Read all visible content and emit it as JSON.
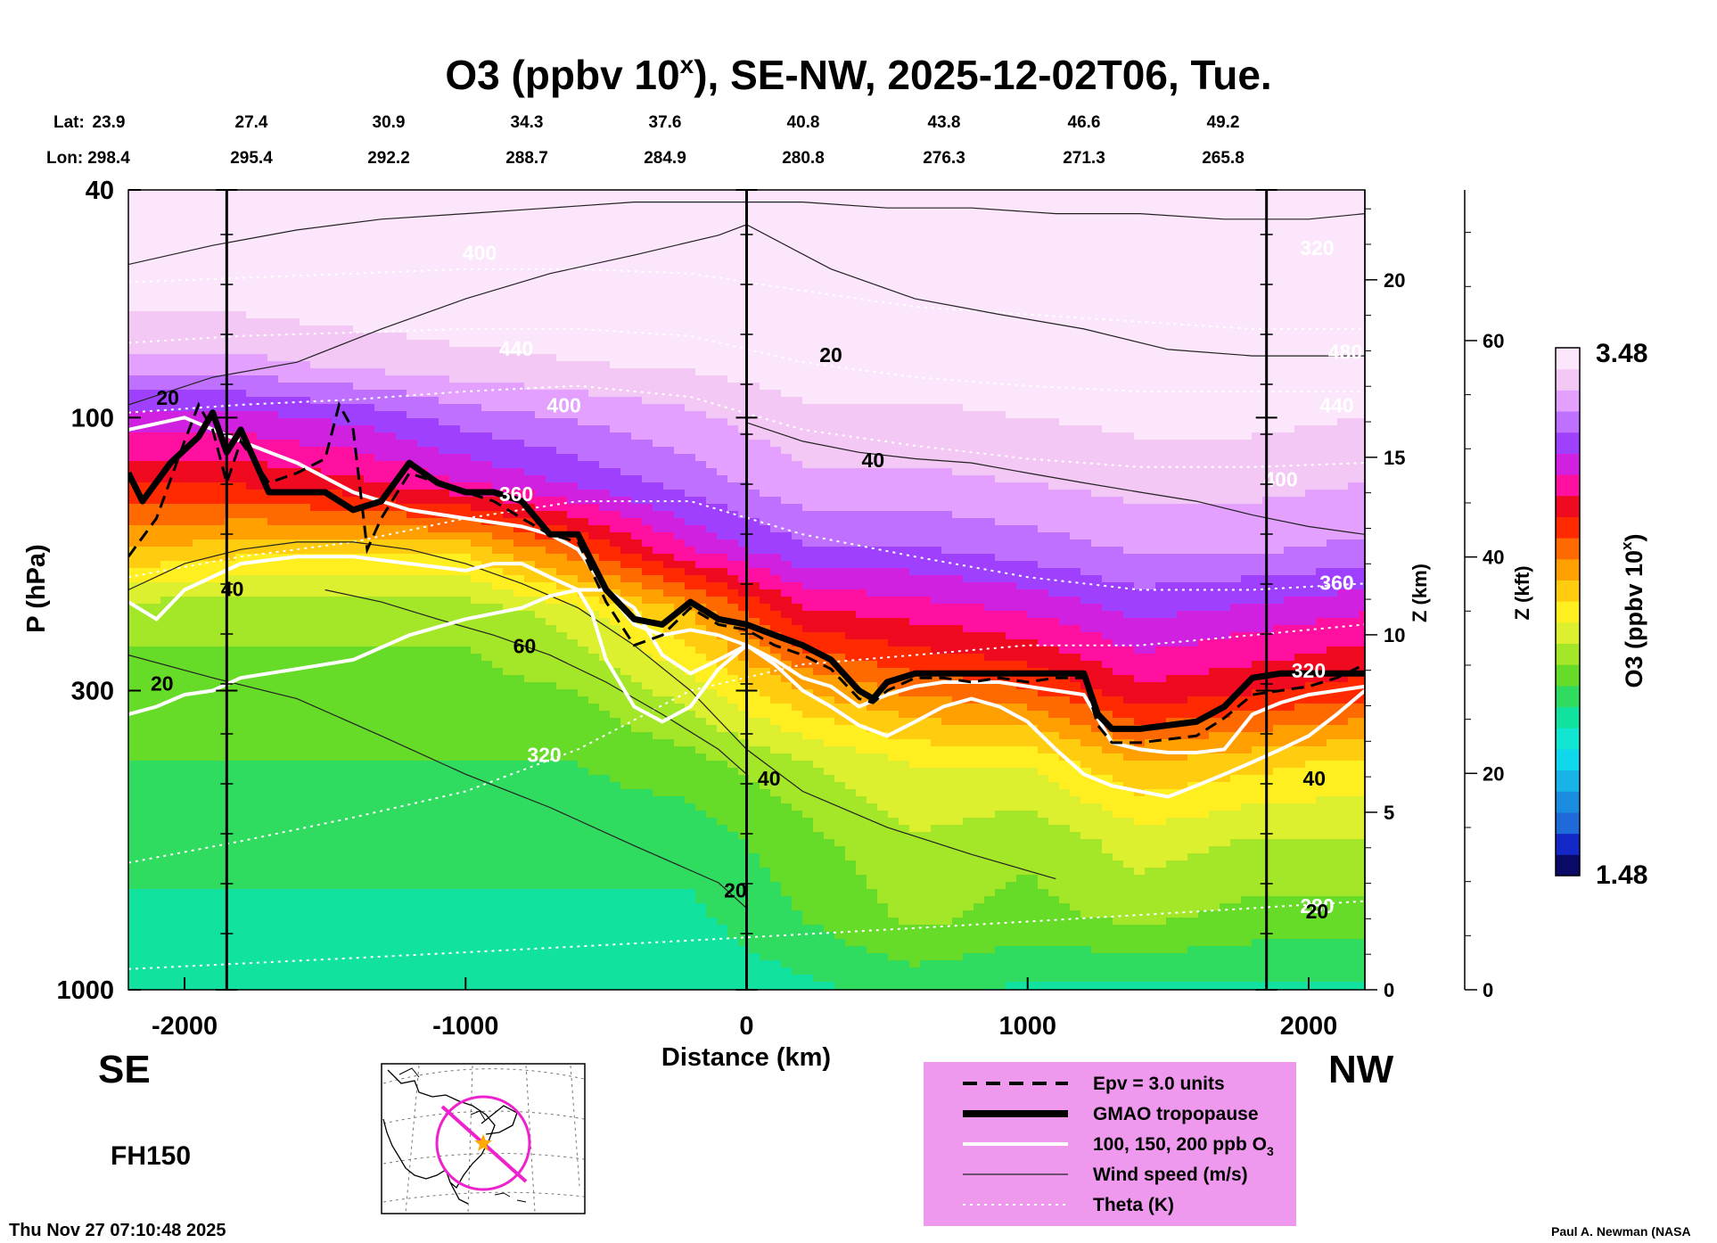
{
  "chart_data": {
    "type": "heatmap",
    "title": "O3 (ppbv 10",
    "title_sup": "x",
    "title_tail": "), SE-NW, 2025-12-02T06, Tue.",
    "lat_label": "Lat:",
    "lon_label": "Lon:",
    "lat": [
      "23.9",
      "27.4",
      "30.9",
      "34.3",
      "37.6",
      "40.8",
      "43.8",
      "46.6",
      "49.2"
    ],
    "lon": [
      "298.4",
      "295.4",
      "292.2",
      "288.7",
      "284.9",
      "280.8",
      "276.3",
      "271.3",
      "265.8"
    ],
    "xlabel": "Distance (km)",
    "xlim": [
      -2200,
      2200
    ],
    "xticks": [
      -2000,
      -1000,
      0,
      1000,
      2000
    ],
    "xtick_labels": [
      "-2000",
      "-1000",
      "0",
      "1000",
      "2000"
    ],
    "ylabel": "P (hPa)",
    "ylim": [
      1000,
      40
    ],
    "y_scale": "log",
    "yticks": [
      40,
      100,
      300,
      1000
    ],
    "ytick_labels": [
      "40",
      "100",
      "300",
      "1000"
    ],
    "z_km_label": "Z (km)",
    "z_km_ticks": [
      0,
      5,
      10,
      15,
      20
    ],
    "z_km_tick_labels": [
      "0",
      "5",
      "10",
      "15",
      "20"
    ],
    "z_kft_label": "Z (kft)",
    "z_kft_ticks": [
      0,
      20,
      40,
      60
    ],
    "z_kft_tick_labels": [
      "0",
      "20",
      "40",
      "60"
    ],
    "colorbar": {
      "label": "O3 (ppbv 10",
      "label_sup": "x",
      "label_tail": ")",
      "min": 1.48,
      "max": 3.48,
      "min_label": "1.48",
      "max_label": "3.48",
      "colors": [
        "#0a0a66",
        "#1428c8",
        "#1e6ad8",
        "#1a8ce0",
        "#18b4e8",
        "#10d8ec",
        "#10e6d2",
        "#12e2a0",
        "#30dc60",
        "#66dc28",
        "#a4e628",
        "#dcf030",
        "#ffee20",
        "#ffcc10",
        "#ffa000",
        "#ff6a00",
        "#ff2a00",
        "#f00a20",
        "#ff10a0",
        "#d020e0",
        "#a040ff",
        "#c070ff",
        "#e4a0ff",
        "#f4c8f4",
        "#fbe6fb"
      ]
    },
    "profile_columns": [
      {
        "x": -2200,
        "values": [
          3.48,
          3.45,
          3.3,
          3.05,
          2.85,
          2.6,
          2.3,
          2.25,
          2.2,
          2.15,
          2.1,
          2.05
        ]
      },
      {
        "x": -1800,
        "values": [
          3.48,
          3.45,
          3.3,
          3.05,
          2.85,
          2.55,
          2.3,
          2.25,
          2.2,
          2.15,
          2.1,
          2.05
        ]
      },
      {
        "x": -1400,
        "values": [
          3.48,
          3.46,
          3.35,
          3.1,
          2.9,
          2.55,
          2.3,
          2.25,
          2.2,
          2.15,
          2.1,
          2.05
        ]
      },
      {
        "x": -1000,
        "values": [
          3.48,
          3.47,
          3.38,
          3.2,
          3.0,
          2.55,
          2.3,
          2.25,
          2.2,
          2.15,
          2.1,
          2.05
        ]
      },
      {
        "x": -600,
        "values": [
          3.48,
          3.47,
          3.4,
          3.25,
          3.1,
          2.75,
          2.4,
          2.28,
          2.2,
          2.15,
          2.1,
          2.05
        ]
      },
      {
        "x": -200,
        "values": [
          3.48,
          3.48,
          3.42,
          3.3,
          3.2,
          3.0,
          2.6,
          2.4,
          2.25,
          2.15,
          2.1,
          2.05
        ]
      },
      {
        "x": 200,
        "values": [
          3.48,
          3.48,
          3.45,
          3.38,
          3.3,
          3.15,
          2.9,
          2.6,
          2.35,
          2.25,
          2.2,
          2.1
        ]
      },
      {
        "x": 600,
        "values": [
          3.48,
          3.48,
          3.45,
          3.38,
          3.3,
          3.15,
          2.95,
          2.7,
          2.45,
          2.35,
          2.3,
          2.15
        ]
      },
      {
        "x": 1000,
        "values": [
          3.48,
          3.48,
          3.46,
          3.4,
          3.32,
          3.2,
          3.0,
          2.75,
          2.45,
          2.3,
          2.25,
          2.1
        ]
      },
      {
        "x": 1400,
        "values": [
          3.48,
          3.48,
          3.47,
          3.42,
          3.35,
          3.25,
          3.1,
          2.9,
          2.6,
          2.4,
          2.3,
          2.1
        ]
      },
      {
        "x": 1800,
        "values": [
          3.48,
          3.48,
          3.47,
          3.42,
          3.35,
          3.25,
          3.05,
          2.85,
          2.55,
          2.35,
          2.25,
          2.1
        ]
      },
      {
        "x": 2200,
        "values": [
          3.48,
          3.48,
          3.46,
          3.4,
          3.32,
          3.22,
          3.0,
          2.8,
          2.5,
          2.35,
          2.25,
          2.1
        ]
      }
    ],
    "profile_pressures": [
      40,
      60,
      80,
      100,
      130,
      170,
      220,
      300,
      400,
      550,
      750,
      1000
    ],
    "tropopause": {
      "name": "GMAO tropopause",
      "x": [
        -2200,
        -2150,
        -2050,
        -1950,
        -1900,
        -1850,
        -1800,
        -1700,
        -1600,
        -1500,
        -1400,
        -1300,
        -1200,
        -1100,
        -1000,
        -900,
        -800,
        -700,
        -600,
        -500,
        -400,
        -300,
        -200,
        -100,
        0,
        100,
        200,
        300,
        400,
        450,
        500,
        600,
        700,
        800,
        900,
        1000,
        1100,
        1200,
        1250,
        1300,
        1400,
        1500,
        1600,
        1700,
        1800,
        1900,
        2000,
        2100,
        2200
      ],
      "p": [
        125,
        140,
        120,
        108,
        98,
        115,
        105,
        135,
        135,
        135,
        145,
        140,
        120,
        130,
        135,
        135,
        140,
        160,
        160,
        200,
        225,
        230,
        210,
        225,
        230,
        240,
        250,
        265,
        300,
        310,
        290,
        280,
        280,
        280,
        280,
        280,
        280,
        280,
        330,
        350,
        350,
        345,
        340,
        320,
        285,
        280,
        280,
        280,
        280
      ]
    },
    "epv": {
      "name": "Epv = 3.0 units",
      "x": [
        -2200,
        -2100,
        -2000,
        -1950,
        -1900,
        -1850,
        -1800,
        -1700,
        -1600,
        -1500,
        -1450,
        -1400,
        -1350,
        -1300,
        -1200,
        -1100,
        -1000,
        -900,
        -800,
        -700,
        -600,
        -500,
        -400,
        -300,
        -200,
        -100,
        0,
        100,
        200,
        300,
        400,
        450,
        500,
        600,
        700,
        800,
        900,
        1000,
        1100,
        1200,
        1250,
        1300,
        1400,
        1500,
        1600,
        1700,
        1800,
        1900,
        2000,
        2100,
        2200
      ],
      "p": [
        175,
        150,
        110,
        95,
        105,
        130,
        110,
        130,
        125,
        118,
        95,
        105,
        170,
        150,
        125,
        130,
        135,
        140,
        150,
        160,
        165,
        210,
        250,
        240,
        215,
        230,
        235,
        250,
        260,
        275,
        310,
        315,
        300,
        285,
        285,
        290,
        285,
        290,
        285,
        285,
        345,
        370,
        370,
        365,
        360,
        335,
        305,
        300,
        295,
        285,
        270
      ]
    },
    "ozone_200ppb": {
      "name": "100, 150, 200 ppb O3",
      "x": [
        -2200,
        -2000,
        -1800,
        -1600,
        -1400,
        -1200,
        -1000,
        -800,
        -700,
        -600,
        -500,
        -400,
        -300,
        -200,
        -100,
        0,
        100,
        200,
        300,
        400,
        500,
        600,
        700,
        800,
        900,
        1000,
        1100,
        1200,
        1300,
        1400,
        1500,
        1600,
        1700,
        1800,
        1900,
        2000,
        2100,
        2200
      ],
      "p": [
        105,
        100,
        110,
        120,
        135,
        145,
        150,
        155,
        160,
        170,
        200,
        230,
        240,
        235,
        240,
        250,
        265,
        285,
        295,
        320,
        305,
        295,
        290,
        290,
        290,
        295,
        300,
        305,
        370,
        380,
        385,
        385,
        380,
        330,
        315,
        305,
        300,
        295
      ]
    },
    "ozone_100ppb": {
      "name": "100, 150, 200 ppb O3",
      "x": [
        -2200,
        -2100,
        -2000,
        -1800,
        -1600,
        -1400,
        -1200,
        -1000,
        -900,
        -800,
        -700,
        -600,
        -550,
        -500,
        -400,
        -300,
        -200,
        -100,
        0,
        100,
        200,
        300,
        400,
        500,
        600,
        700,
        800,
        900,
        1000,
        1100,
        1200,
        1300,
        1400,
        1500,
        1600,
        1700,
        1800,
        1900,
        2000,
        2100,
        2200
      ],
      "p": [
        210,
        225,
        200,
        180,
        175,
        175,
        180,
        185,
        180,
        180,
        190,
        200,
        220,
        265,
        320,
        340,
        320,
        275,
        250,
        270,
        300,
        320,
        345,
        360,
        340,
        320,
        310,
        320,
        340,
        380,
        420,
        440,
        450,
        460,
        440,
        420,
        400,
        380,
        360,
        330,
        300
      ]
    },
    "ozone_150ppb": {
      "name": "100, 150, 200 ppb O3",
      "x": [
        -2200,
        -2100,
        -2000,
        -1900,
        -1800,
        -1600,
        -1400,
        -1200,
        -1000,
        -800,
        -700,
        -600,
        -500,
        -400,
        -300,
        -200,
        -100,
        0
      ],
      "p": [
        330,
        320,
        305,
        300,
        285,
        275,
        265,
        240,
        225,
        215,
        205,
        200,
        200,
        215,
        260,
        280,
        265,
        250
      ]
    },
    "wind_contours": [
      {
        "label": "20",
        "x": [
          -2200,
          -1900,
          -1600,
          -1300,
          -1000,
          -700,
          -400,
          -100,
          0,
          300,
          600,
          900,
          1200,
          1500,
          1800,
          2200
        ],
        "p": [
          95,
          85,
          80,
          70,
          62,
          56,
          52,
          48,
          46,
          55,
          62,
          66,
          70,
          76,
          78,
          78
        ]
      },
      {
        "label": "20",
        "x": [
          -2200,
          -1900,
          -1600,
          -1300,
          -1000,
          -700,
          -400,
          -100,
          0
        ],
        "p": [
          260,
          285,
          310,
          360,
          420,
          480,
          560,
          650,
          720
        ]
      },
      {
        "label": "40",
        "x": [
          -2200,
          -2000,
          -1800,
          -1600,
          -1400,
          -1200,
          -1000,
          -800,
          -600,
          -400,
          -200,
          0,
          200,
          500,
          800,
          1100
        ],
        "p": [
          200,
          180,
          170,
          165,
          165,
          170,
          180,
          195,
          215,
          250,
          300,
          380,
          450,
          520,
          580,
          640
        ]
      },
      {
        "label": "60",
        "x": [
          -1500,
          -1300,
          -1100,
          -900,
          -700,
          -500,
          -300,
          -100,
          0
        ],
        "p": [
          200,
          210,
          225,
          240,
          260,
          290,
          330,
          380,
          420
        ]
      },
      {
        "label": "40",
        "x": [
          0,
          200,
          400,
          600,
          800,
          1000,
          1200,
          1400,
          1600,
          1800,
          2000,
          2200
        ],
        "p": [
          102,
          110,
          115,
          118,
          120,
          125,
          130,
          135,
          140,
          148,
          155,
          160
        ]
      },
      {
        "label": "",
        "x": [
          -2200,
          -1900,
          -1600,
          -1300,
          -1000,
          -700,
          -400,
          -100,
          200,
          500,
          800,
          1100,
          1400,
          1700,
          2000,
          2200
        ],
        "p": [
          54,
          50,
          47,
          45,
          44,
          43,
          42,
          42,
          42,
          43,
          43,
          44,
          44,
          45,
          45,
          44
        ]
      }
    ],
    "theta_contours": [
      {
        "label": "320",
        "x": [
          -2200,
          -1800,
          -1400,
          -1000,
          -600,
          -200,
          200,
          600,
          1000,
          1400,
          1800,
          2200
        ],
        "p": [
          600,
          550,
          500,
          450,
          380,
          300,
          270,
          260,
          250,
          250,
          240,
          230
        ]
      },
      {
        "label": "360",
        "x": [
          -2200,
          -1800,
          -1400,
          -1000,
          -600,
          -200,
          200,
          600,
          1000,
          1400,
          1800,
          2200
        ],
        "p": [
          190,
          175,
          165,
          150,
          140,
          140,
          160,
          175,
          190,
          200,
          200,
          195
        ]
      },
      {
        "label": "400",
        "x": [
          -2200,
          -1800,
          -1400,
          -1000,
          -600,
          -200,
          200,
          600,
          1000,
          1400,
          1800,
          2200
        ],
        "p": [
          98,
          95,
          93,
          90,
          88,
          92,
          105,
          112,
          118,
          122,
          122,
          120
        ]
      },
      {
        "label": "440",
        "x": [
          -2200,
          -1800,
          -1400,
          -1000,
          -600,
          -200,
          200,
          600,
          1000,
          1400,
          1800,
          2200
        ],
        "p": [
          74,
          72,
          71,
          70,
          70,
          72,
          80,
          85,
          88,
          90,
          90,
          90
        ]
      },
      {
        "label": "480",
        "x": [
          -2200,
          -1800,
          -1400,
          -1000,
          -600,
          -200,
          200,
          600,
          1000,
          1400,
          1800,
          2200
        ],
        "p": [
          58,
          57,
          56,
          55,
          55,
          56,
          60,
          64,
          66,
          68,
          70,
          70
        ]
      },
      {
        "label": "280",
        "x": [
          -2200,
          -1800,
          -1400,
          -1000,
          -600,
          -200,
          200,
          600,
          1000,
          1400,
          1800,
          2200
        ],
        "p": [
          920,
          900,
          880,
          860,
          840,
          820,
          800,
          780,
          760,
          740,
          720,
          700
        ]
      }
    ],
    "contour_labels_white": [
      {
        "text": "440",
        "x": -820,
        "p": 78
      },
      {
        "text": "400",
        "x": -650,
        "p": 98
      },
      {
        "text": "360",
        "x": -820,
        "p": 140
      },
      {
        "text": "320",
        "x": -720,
        "p": 400
      },
      {
        "text": "400",
        "x": 1900,
        "p": 132
      },
      {
        "text": "360",
        "x": 2100,
        "p": 200
      },
      {
        "text": "320",
        "x": 2000,
        "p": 285
      },
      {
        "text": "440",
        "x": 2100,
        "p": 98
      },
      {
        "text": "480",
        "x": 2130,
        "p": 79
      },
      {
        "text": "320",
        "x": 2030,
        "p": 52
      },
      {
        "text": "400",
        "x": -950,
        "p": 53
      },
      {
        "text": "280",
        "x": 2030,
        "p": 735
      }
    ],
    "contour_labels_black": [
      {
        "text": "20",
        "x": -2060,
        "p": 95
      },
      {
        "text": "20",
        "x": 300,
        "p": 80
      },
      {
        "text": "40",
        "x": 450,
        "p": 122
      },
      {
        "text": "40",
        "x": -1830,
        "p": 205
      },
      {
        "text": "60",
        "x": -790,
        "p": 258
      },
      {
        "text": "20",
        "x": -2080,
        "p": 300
      },
      {
        "text": "40",
        "x": 80,
        "p": 440
      },
      {
        "text": "40",
        "x": 2020,
        "p": 440
      },
      {
        "text": "20",
        "x": -40,
        "p": 690
      },
      {
        "text": "20",
        "x": 2030,
        "p": 750
      }
    ],
    "vertical_markers": [
      -1850,
      0,
      1850
    ],
    "dir_left": "SE",
    "dir_right": "NW",
    "forecast_hour": "FH150",
    "timestamp": "Thu Nov 27 07:10:48 2025",
    "credit": "Paul A. Newman (NASA",
    "legend": [
      {
        "name": "Epv = 3.0 units",
        "style": "dashed"
      },
      {
        "name": "GMAO tropopause",
        "style": "thick"
      },
      {
        "name": "100, 150, 200 ppb O",
        "sub": "3",
        "style": "white"
      },
      {
        "name": "Wind speed (m/s)",
        "style": "thin"
      },
      {
        "name": "Theta (K)",
        "style": "dotted"
      }
    ],
    "legend_bg": "#ee99ee",
    "map_track_color": "#ee22cc",
    "map_center_color": "#ffaa00"
  }
}
